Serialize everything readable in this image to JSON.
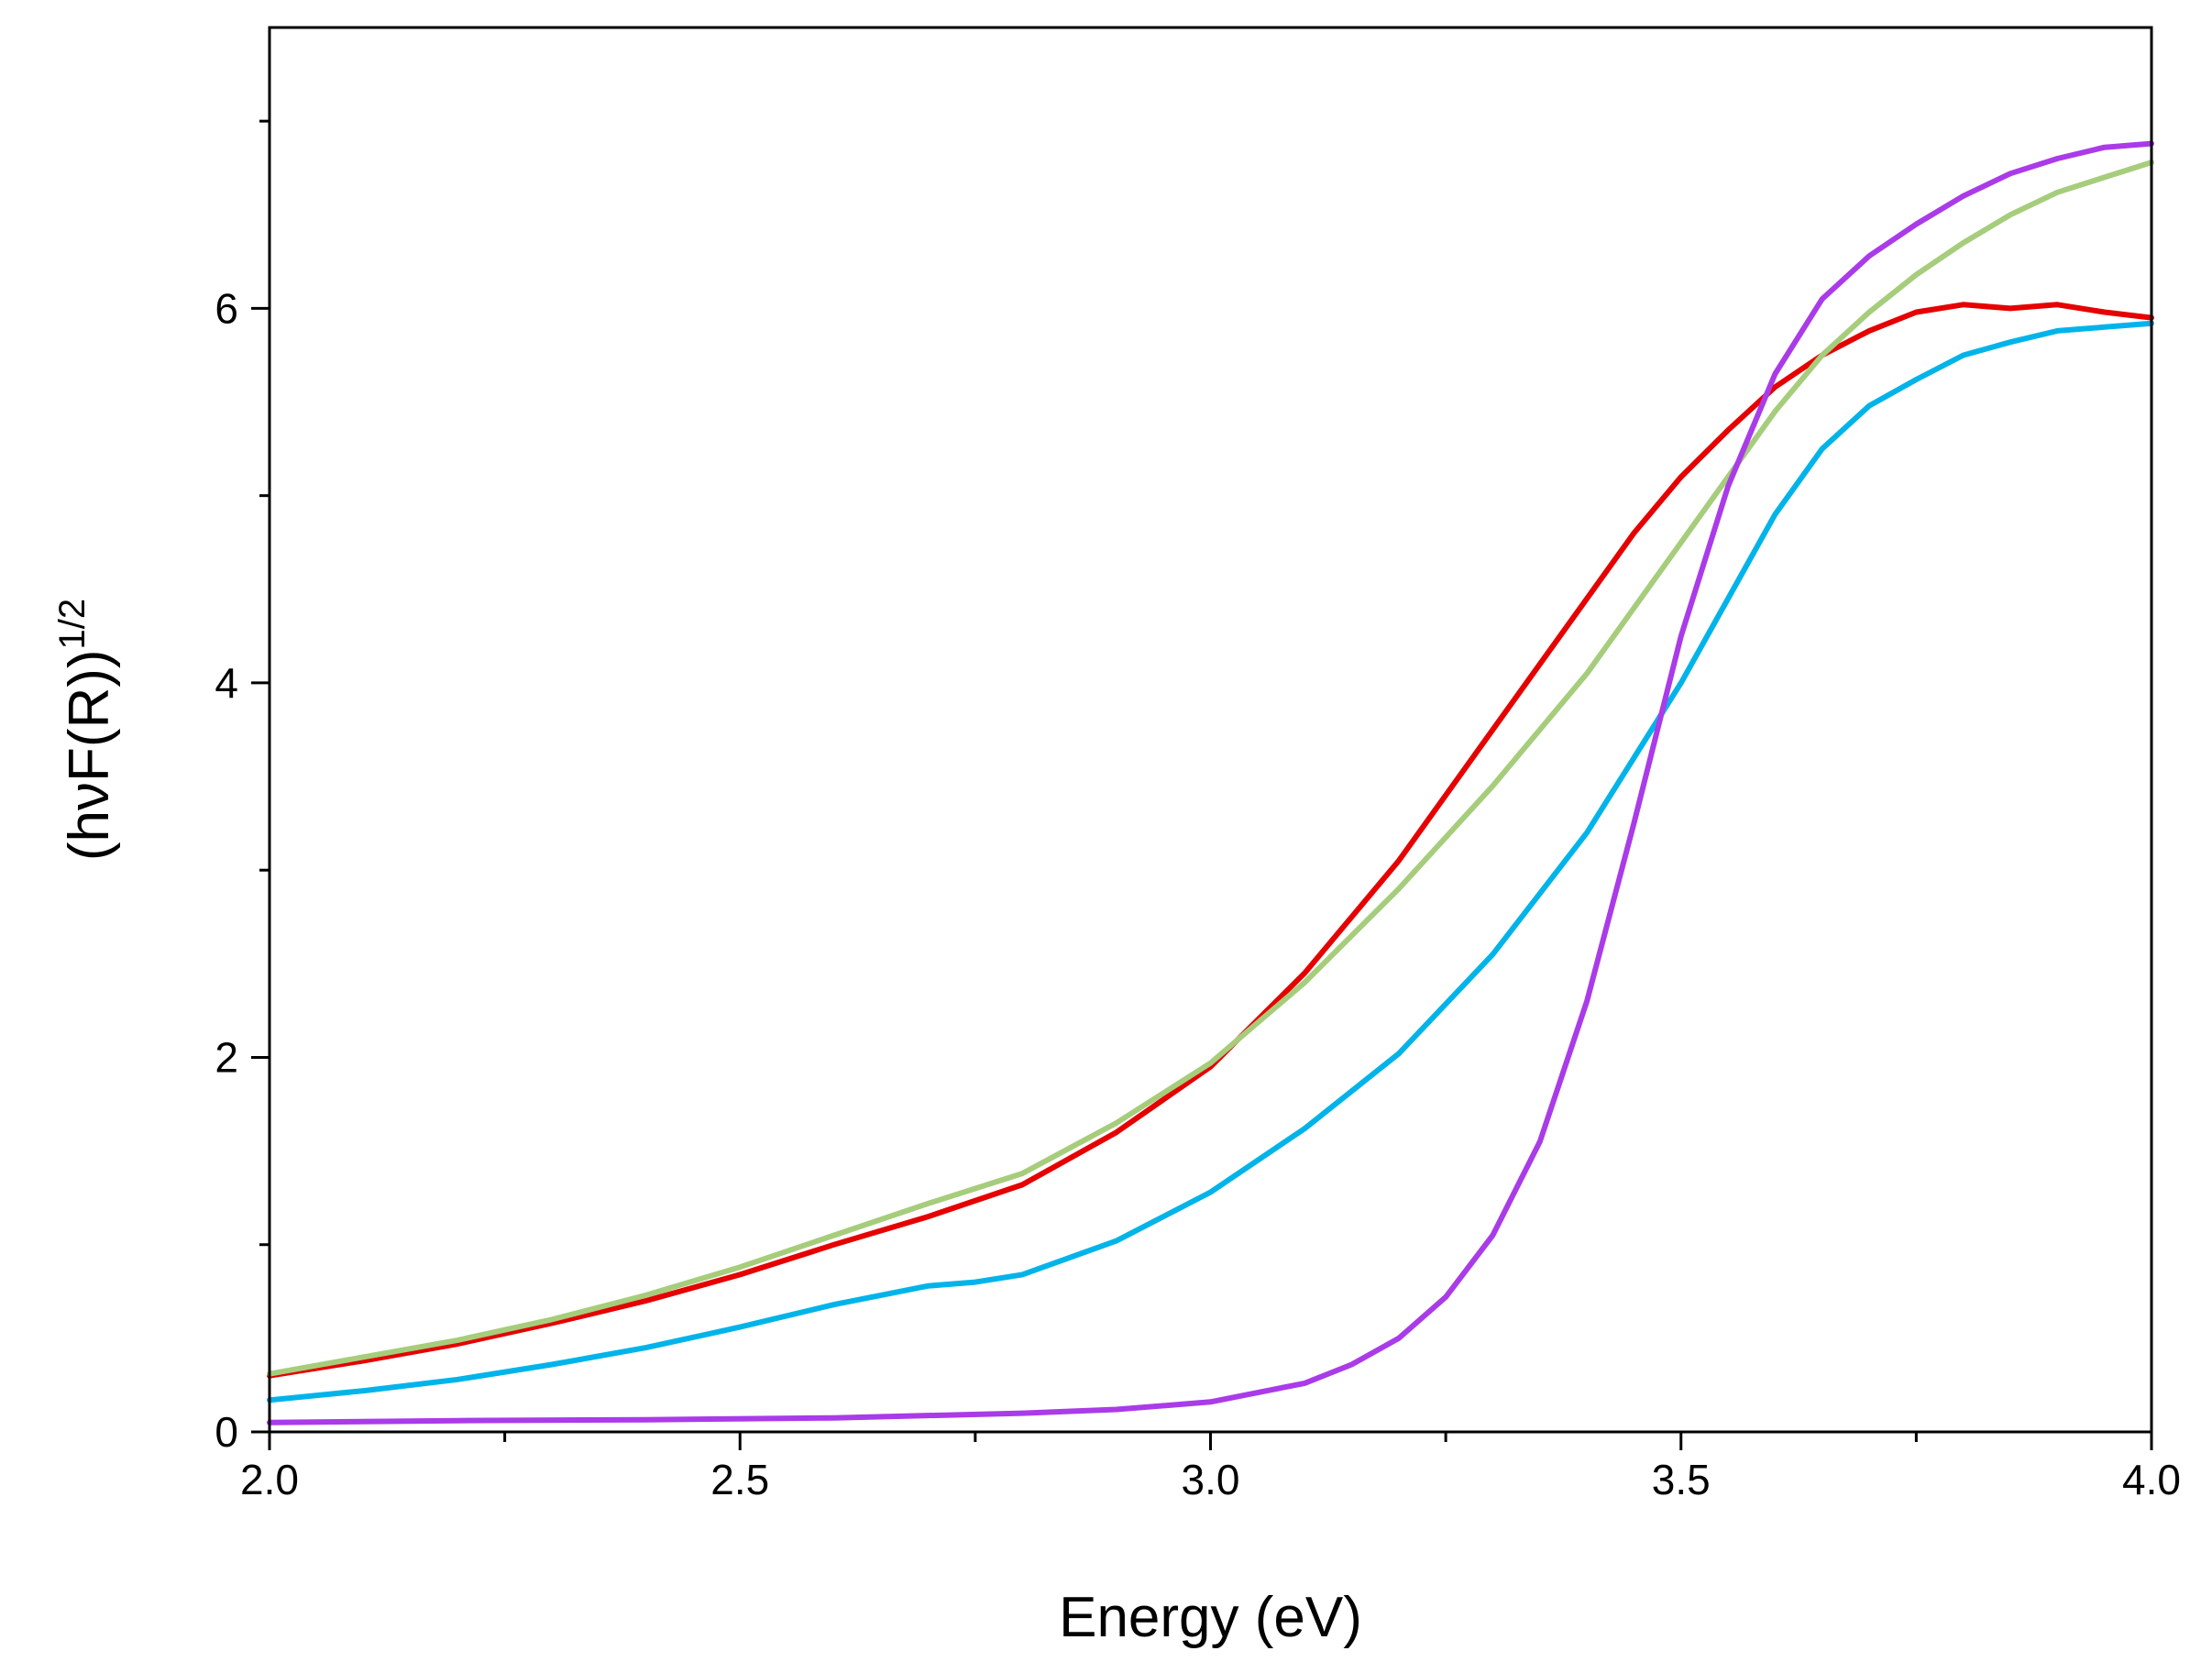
{
  "chart_data": {
    "type": "line",
    "title": "",
    "xlabel": "Energy (eV)",
    "ylabel": {
      "main": "(hνF(R))",
      "sup": "1/2"
    },
    "xlim": [
      2.0,
      4.0
    ],
    "ylim": [
      0,
      7.5
    ],
    "xticks": [
      2.0,
      2.5,
      3.0,
      3.5,
      4.0
    ],
    "xtick_labels": [
      "2.0",
      "2.5",
      "3.0",
      "3.5",
      "4.0"
    ],
    "xminor": [
      2.25,
      2.75,
      3.25,
      3.75
    ],
    "yticks": [
      0,
      2,
      4,
      6
    ],
    "ytick_labels": [
      "0",
      "2",
      "4",
      "6"
    ],
    "yminor": [
      1,
      3,
      5,
      7
    ],
    "grid": false,
    "legend": "none",
    "series": [
      {
        "color": "#e60000",
        "x": [
          2.0,
          2.1,
          2.2,
          2.3,
          2.4,
          2.5,
          2.6,
          2.7,
          2.8,
          2.9,
          3.0,
          3.1,
          3.2,
          3.3,
          3.4,
          3.45,
          3.5,
          3.55,
          3.6,
          3.65,
          3.7,
          3.75,
          3.8,
          3.85,
          3.9,
          3.95,
          4.0
        ],
        "y": [
          0.3,
          0.38,
          0.47,
          0.58,
          0.7,
          0.84,
          1.0,
          1.15,
          1.32,
          1.6,
          1.95,
          2.45,
          3.05,
          3.75,
          4.45,
          4.8,
          5.1,
          5.35,
          5.58,
          5.75,
          5.88,
          5.98,
          6.02,
          6.0,
          6.02,
          5.98,
          5.95
        ]
      },
      {
        "color": "#a6cd7b",
        "x": [
          2.0,
          2.1,
          2.2,
          2.3,
          2.4,
          2.5,
          2.6,
          2.7,
          2.8,
          2.9,
          3.0,
          3.1,
          3.2,
          3.3,
          3.4,
          3.5,
          3.55,
          3.6,
          3.65,
          3.7,
          3.75,
          3.8,
          3.85,
          3.9,
          3.95,
          4.0
        ],
        "y": [
          0.31,
          0.4,
          0.49,
          0.6,
          0.73,
          0.88,
          1.05,
          1.22,
          1.38,
          1.65,
          1.97,
          2.4,
          2.9,
          3.45,
          4.05,
          4.75,
          5.1,
          5.45,
          5.75,
          5.98,
          6.18,
          6.35,
          6.5,
          6.62,
          6.7,
          6.78
        ]
      },
      {
        "color": "#00b4ea",
        "x": [
          2.0,
          2.1,
          2.2,
          2.3,
          2.4,
          2.5,
          2.6,
          2.7,
          2.75,
          2.8,
          2.9,
          3.0,
          3.1,
          3.2,
          3.3,
          3.4,
          3.5,
          3.55,
          3.6,
          3.65,
          3.7,
          3.75,
          3.8,
          3.85,
          3.9,
          3.95,
          4.0
        ],
        "y": [
          0.17,
          0.22,
          0.28,
          0.36,
          0.45,
          0.56,
          0.68,
          0.78,
          0.8,
          0.84,
          1.02,
          1.28,
          1.62,
          2.02,
          2.55,
          3.2,
          4.0,
          4.45,
          4.9,
          5.25,
          5.48,
          5.62,
          5.75,
          5.82,
          5.88,
          5.9,
          5.92
        ]
      },
      {
        "color": "#aa3be9",
        "x": [
          2.0,
          2.2,
          2.4,
          2.6,
          2.8,
          2.9,
          3.0,
          3.1,
          3.15,
          3.2,
          3.25,
          3.3,
          3.35,
          3.4,
          3.45,
          3.5,
          3.55,
          3.6,
          3.65,
          3.7,
          3.75,
          3.8,
          3.85,
          3.9,
          3.95,
          4.0
        ],
        "y": [
          0.05,
          0.06,
          0.065,
          0.075,
          0.1,
          0.12,
          0.16,
          0.26,
          0.36,
          0.5,
          0.72,
          1.05,
          1.55,
          2.3,
          3.25,
          4.25,
          5.05,
          5.65,
          6.05,
          6.28,
          6.45,
          6.6,
          6.72,
          6.8,
          6.86,
          6.88
        ]
      }
    ]
  }
}
